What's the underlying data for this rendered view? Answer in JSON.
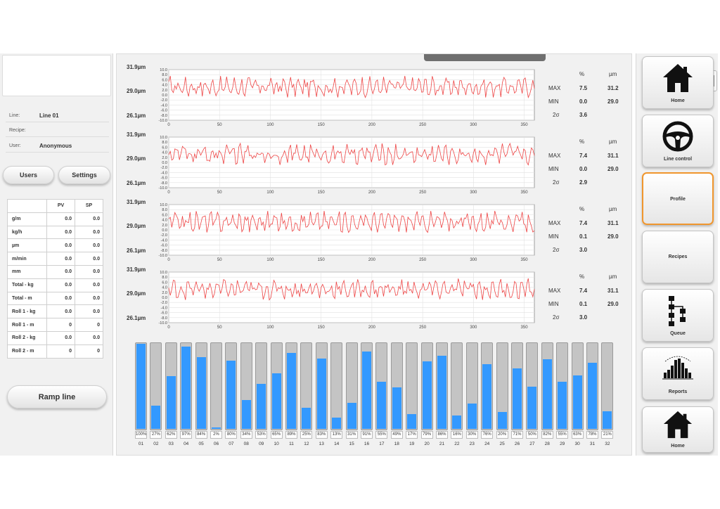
{
  "left_panel": {
    "info": [
      {
        "label": "Line:",
        "value": "Line 01"
      },
      {
        "label": "Recipe:",
        "value": ""
      },
      {
        "label": "User:",
        "value": "Anonymous"
      }
    ],
    "users_button": "Users",
    "settings_button": "Settings",
    "pv_sp_table": {
      "headers": [
        "",
        "PV",
        "SP"
      ],
      "rows": [
        {
          "label": "g/m",
          "pv": "0.0",
          "sp": "0.0"
        },
        {
          "label": "kg/h",
          "pv": "0.0",
          "sp": "0.0"
        },
        {
          "label": "µm",
          "pv": "0.0",
          "sp": "0.0"
        },
        {
          "label": "m/min",
          "pv": "0.0",
          "sp": "0.0"
        },
        {
          "label": "mm",
          "pv": "0.0",
          "sp": "0.0"
        },
        {
          "label": "Total - kg",
          "pv": "0.0",
          "sp": "0.0"
        },
        {
          "label": "Total - m",
          "pv": "0.0",
          "sp": "0.0"
        },
        {
          "label": "Roll 1 - kg",
          "pv": "0.0",
          "sp": "0.0"
        },
        {
          "label": "Roll 1 - m",
          "pv": "0",
          "sp": "0"
        },
        {
          "label": "Roll 2 - kg",
          "pv": "0.0",
          "sp": "0.0"
        },
        {
          "label": "Roll 2 - m",
          "pv": "0",
          "sp": "0"
        }
      ]
    },
    "ramp_button": "Ramp line"
  },
  "profile_charts": [
    {
      "top_label": "31.9µm",
      "mid_label": "29.0µm",
      "bottom_label": "26.1µm",
      "stats": {
        "pct_header": "%",
        "um_header": "µm",
        "max_label": "MAX",
        "min_label": "MIN",
        "sigma_label": "2σ",
        "max_pct": "7.5",
        "max_um": "31.2",
        "min_pct": "0.0",
        "min_um": "29.0",
        "sigma": "3.6"
      }
    },
    {
      "top_label": "31.9µm",
      "mid_label": "29.0µm",
      "bottom_label": "26.1µm",
      "stats": {
        "pct_header": "%",
        "um_header": "µm",
        "max_label": "MAX",
        "min_label": "MIN",
        "sigma_label": "2σ",
        "max_pct": "7.4",
        "max_um": "31.1",
        "min_pct": "0.0",
        "min_um": "29.0",
        "sigma": "2.9"
      }
    },
    {
      "top_label": "31.9µm",
      "mid_label": "29.0µm",
      "bottom_label": "26.1µm",
      "stats": {
        "pct_header": "%",
        "um_header": "µm",
        "max_label": "MAX",
        "min_label": "MIN",
        "sigma_label": "2σ",
        "max_pct": "7.4",
        "max_um": "31.1",
        "min_pct": "0.1",
        "min_um": "29.0",
        "sigma": "3.0"
      }
    },
    {
      "top_label": "31.9µm",
      "mid_label": "29.0µm",
      "bottom_label": "26.1µm",
      "stats": {
        "pct_header": "%",
        "um_header": "µm",
        "max_label": "MAX",
        "min_label": "MIN",
        "sigma_label": "2σ",
        "max_pct": "7.4",
        "max_um": "31.1",
        "min_pct": "0.1",
        "min_um": "29.0",
        "sigma": "3.0"
      }
    }
  ],
  "chart_axis": {
    "y_ticks": [
      "10.0",
      "8.0",
      "6.0",
      "4.0",
      "2.0",
      "0.0",
      "-2.0",
      "-4.0",
      "-6.0",
      "-8.0",
      "-10.0"
    ],
    "x_ticks": [
      0,
      50,
      100,
      150,
      200,
      250,
      300,
      350
    ],
    "x_range": [
      0,
      360
    ],
    "y_range": [
      -10,
      10
    ],
    "line_color": "#ee4444"
  },
  "bar_chart": {
    "color": "#3399ff",
    "labels": [
      "01",
      "02",
      "03",
      "04",
      "05",
      "06",
      "07",
      "08",
      "09",
      "10",
      "11",
      "12",
      "13",
      "14",
      "15",
      "16",
      "17",
      "18",
      "19",
      "20",
      "21",
      "22",
      "23",
      "24",
      "25",
      "26",
      "27",
      "28",
      "29",
      "30",
      "31",
      "32"
    ],
    "values": [
      100,
      27,
      62,
      97,
      84,
      2,
      80,
      34,
      53,
      65,
      89,
      25,
      83,
      13,
      31,
      91,
      55,
      49,
      17,
      79,
      86,
      16,
      30,
      76,
      20,
      71,
      50,
      82,
      55,
      63,
      78,
      21
    ]
  },
  "nav": {
    "home_top": "Home",
    "line_control": "Line control",
    "profile": "Profile",
    "recipes": "Recipes",
    "queue": "Queue",
    "reports": "Reports",
    "home_bottom": "Home"
  },
  "icons": {
    "home": "home-icon",
    "wheel": "steering-wheel-icon",
    "queue": "queue-icon",
    "reports": "histogram-icon"
  }
}
